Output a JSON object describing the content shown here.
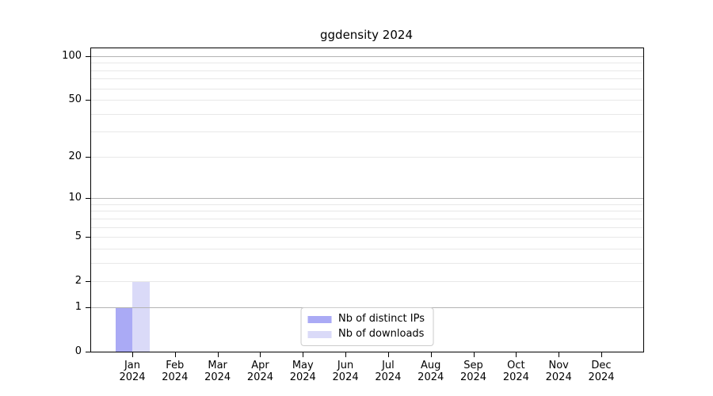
{
  "title": "ggdensity 2024",
  "chart_data": {
    "type": "bar",
    "title": "ggdensity 2024",
    "categories": [
      "Jan",
      "Feb",
      "Mar",
      "Apr",
      "May",
      "Jun",
      "Jul",
      "Aug",
      "Sep",
      "Oct",
      "Nov",
      "Dec"
    ],
    "x_year_label": "2024",
    "series": [
      {
        "name": "Nb of distinct IPs",
        "color": "#aaaaf5",
        "values": [
          1,
          0,
          0,
          0,
          0,
          0,
          0,
          0,
          0,
          0,
          0,
          0
        ]
      },
      {
        "name": "Nb of downloads",
        "color": "#dadaf8",
        "values": [
          2,
          0,
          0,
          0,
          0,
          0,
          0,
          0,
          0,
          0,
          0,
          0
        ]
      }
    ],
    "xlabel": "",
    "ylabel": "",
    "y_axis": {
      "scale": "log1p",
      "ticks": [
        0,
        1,
        2,
        5,
        10,
        20,
        50,
        100
      ],
      "ylim": [
        0,
        113
      ],
      "major_gridlines": [
        1,
        10,
        100
      ],
      "minor_gridlines": [
        2,
        3,
        4,
        5,
        6,
        7,
        8,
        9,
        20,
        30,
        40,
        50,
        60,
        70,
        80,
        90
      ],
      "grid": true
    },
    "legend": {
      "position": "lower center",
      "entries": [
        "Nb of distinct IPs",
        "Nb of downloads"
      ]
    },
    "colors": {
      "major_grid": "#b3b3b3",
      "minor_grid": "#e8e8e8",
      "spine": "#000000",
      "legend_border": "#cccccc",
      "background": "#ffffff"
    }
  }
}
